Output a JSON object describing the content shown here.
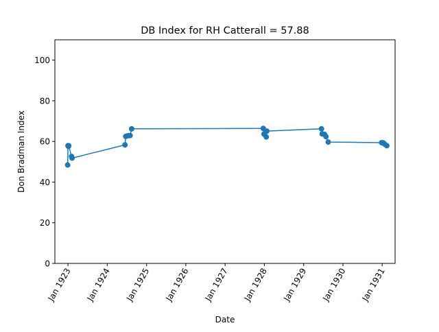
{
  "chart_data": {
    "type": "line",
    "title": "DB Index for RH Catterall = 57.88",
    "xlabel": "Date",
    "ylabel": "Don Bradman Index",
    "ylim": [
      0,
      110
    ],
    "xlim": [
      "1922-09-01",
      "1931-05-01"
    ],
    "yticks": [
      0,
      20,
      40,
      60,
      80,
      100
    ],
    "xticks": [
      {
        "date": "1923-01-01",
        "label": "Jan 1923"
      },
      {
        "date": "1924-01-01",
        "label": "Jan 1924"
      },
      {
        "date": "1925-01-01",
        "label": "Jan 1925"
      },
      {
        "date": "1926-01-01",
        "label": "Jan 1926"
      },
      {
        "date": "1927-01-01",
        "label": "Jan 1927"
      },
      {
        "date": "1928-01-01",
        "label": "Jan 1928"
      },
      {
        "date": "1929-01-01",
        "label": "Jan 1929"
      },
      {
        "date": "1930-01-01",
        "label": "Jan 1930"
      },
      {
        "date": "1931-01-01",
        "label": "Jan 1931"
      }
    ],
    "grid": false,
    "color": "#1f77b4",
    "series": [
      {
        "points": [
          {
            "x": "1922-12-29",
            "y": 48.4
          },
          {
            "x": "1923-01-01",
            "y": 57.9
          },
          {
            "x": "1923-01-05",
            "y": 57.6
          },
          {
            "x": "1923-01-08",
            "y": 57.9
          },
          {
            "x": "1923-02-03",
            "y": 52.6
          },
          {
            "x": "1923-02-08",
            "y": 51.8
          },
          {
            "x": "1924-06-14",
            "y": 58.3
          },
          {
            "x": "1924-06-21",
            "y": 62.5
          },
          {
            "x": "1924-07-12",
            "y": 62.8
          },
          {
            "x": "1924-08-01",
            "y": 62.9
          },
          {
            "x": "1924-08-15",
            "y": 66.2
          },
          {
            "x": "1927-12-22",
            "y": 66.4
          },
          {
            "x": "1927-12-29",
            "y": 63.6
          },
          {
            "x": "1928-01-14",
            "y": 65.0
          },
          {
            "x": "1928-01-19",
            "y": 62.2
          },
          {
            "x": "1928-01-24",
            "y": 65.1
          },
          {
            "x": "1929-06-15",
            "y": 66.2
          },
          {
            "x": "1929-06-22",
            "y": 63.7
          },
          {
            "x": "1929-07-13",
            "y": 63.5
          },
          {
            "x": "1929-07-27",
            "y": 62.4
          },
          {
            "x": "1929-08-17",
            "y": 59.7
          },
          {
            "x": "1930-12-27",
            "y": 59.4
          },
          {
            "x": "1931-01-10",
            "y": 59.3
          },
          {
            "x": "1931-01-23",
            "y": 58.7
          },
          {
            "x": "1931-02-13",
            "y": 57.9
          }
        ]
      }
    ]
  }
}
